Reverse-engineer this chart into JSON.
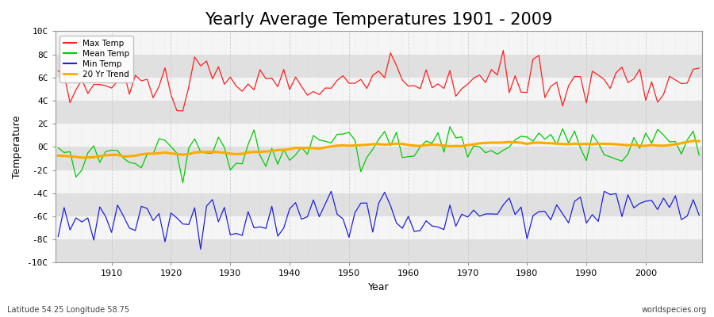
{
  "title": "Yearly Average Temperatures 1901 - 2009",
  "xlabel": "Year",
  "ylabel": "Temperature",
  "ylim": [
    -10,
    10
  ],
  "ytick_labels": [
    "-10C",
    "-8C",
    "-6C",
    "-4C",
    "-2C",
    "0C",
    "2C",
    "4C",
    "6C",
    "8C",
    "10C"
  ],
  "ytick_vals": [
    -10,
    -8,
    -6,
    -4,
    -2,
    0,
    2,
    4,
    6,
    8,
    10
  ],
  "year_start": 1901,
  "year_end": 2009,
  "colors": {
    "max": "#ff2020",
    "mean": "#00cc00",
    "min": "#2020dd",
    "trend": "#ffaa00",
    "fig_bg": "#ffffff",
    "plot_bg": "#f0f0f0",
    "band_light": "#f5f5f5",
    "band_dark": "#e0e0e0"
  },
  "legend_labels": [
    "Max Temp",
    "Mean Temp",
    "Min Temp",
    "20 Yr Trend"
  ],
  "bottom_left": "Latitude 54.25 Longitude 58.75",
  "bottom_right": "worldspecies.org",
  "title_fontsize": 15,
  "axis_label_fontsize": 9,
  "tick_fontsize": 8
}
